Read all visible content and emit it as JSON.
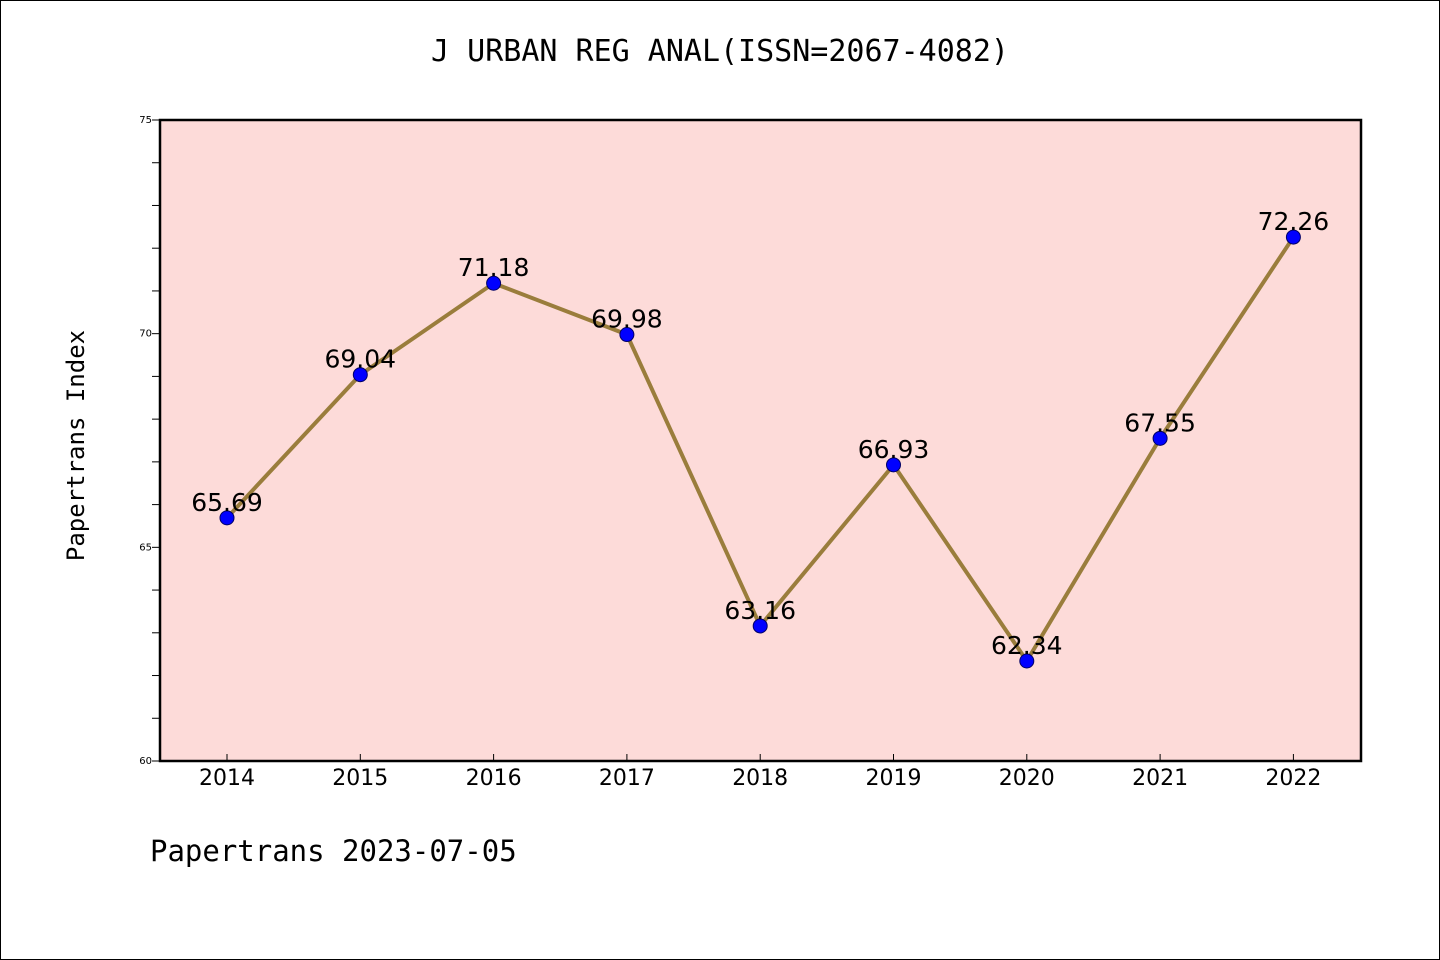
{
  "chart_data": {
    "type": "line",
    "title": "J URBAN REG ANAL(ISSN=2067-4082)",
    "xlabel": "",
    "ylabel": "Papertrans Index",
    "categories": [
      "2014",
      "2015",
      "2016",
      "2017",
      "2018",
      "2019",
      "2020",
      "2021",
      "2022"
    ],
    "series": [
      {
        "values": [
          65.69,
          69.04,
          71.18,
          69.98,
          63.16,
          66.93,
          62.34,
          67.55,
          72.26
        ],
        "labels": [
          "65.69",
          "69.04",
          "71.18",
          "69.98",
          "63.16",
          "66.93",
          "62.34",
          "67.55",
          "72.26"
        ]
      }
    ],
    "ylim": [
      60,
      75
    ],
    "yticks": [
      "60",
      "65",
      "70",
      "75"
    ],
    "grid": false,
    "legend": "none",
    "colors": {
      "plot_background": "#fddbd9",
      "line": "#9a7d3c",
      "marker": "#0000ff"
    }
  },
  "footer": {
    "text": "Papertrans 2023-07-05"
  }
}
